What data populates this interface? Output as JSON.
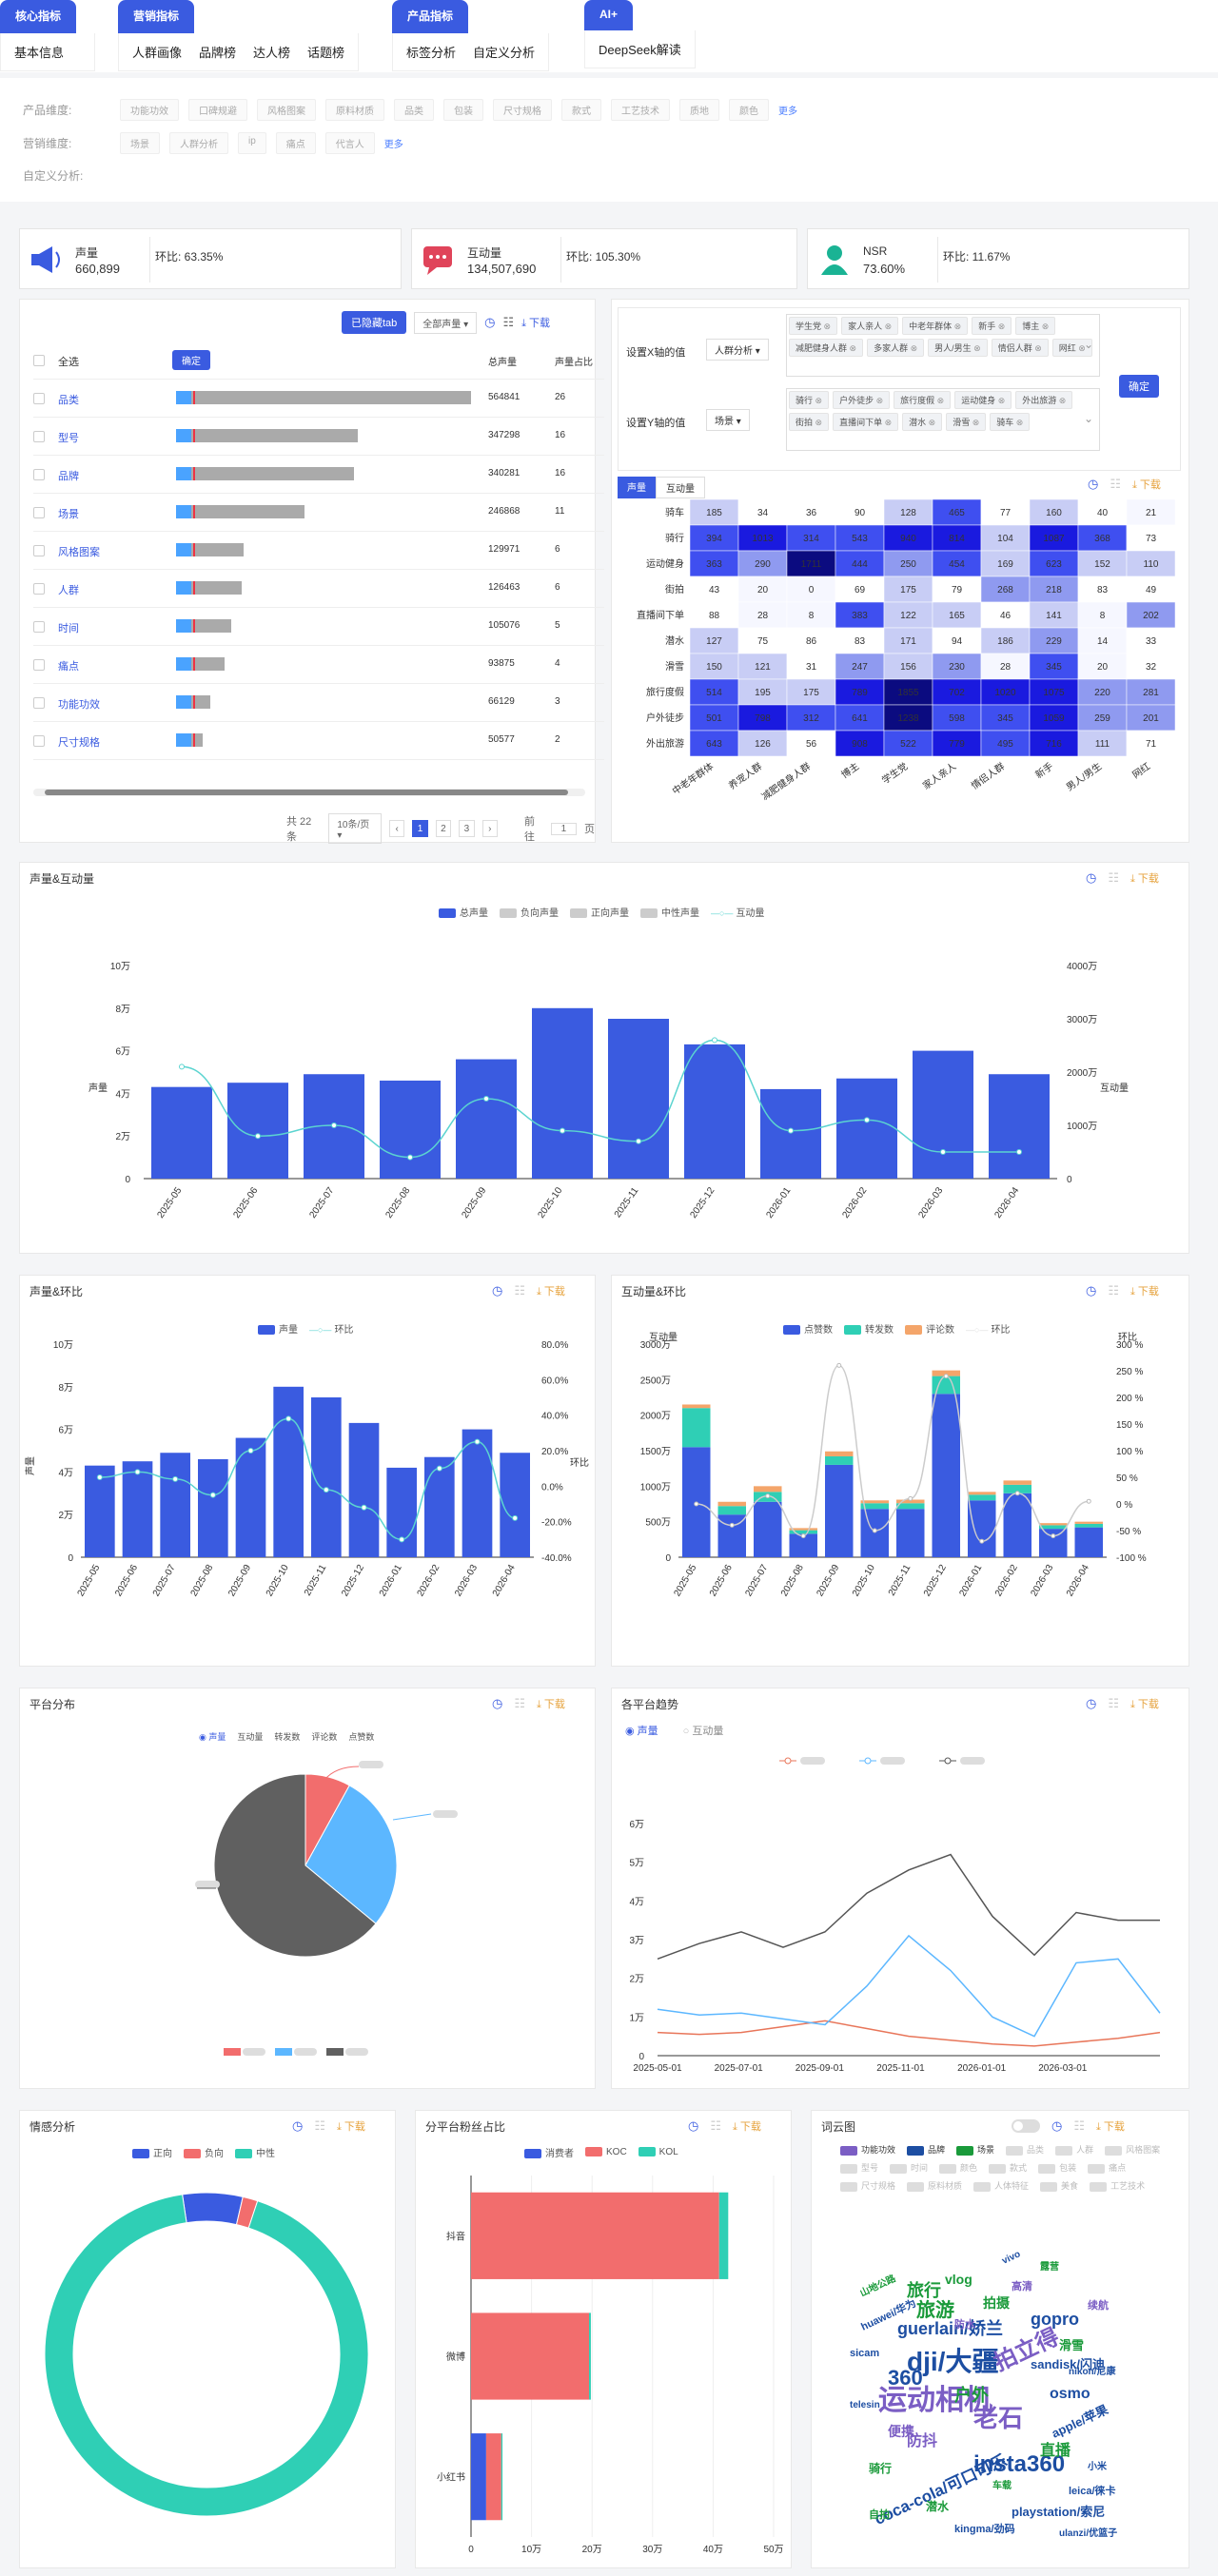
{
  "nav": {
    "groups": [
      {
        "header": "核心指标",
        "items": [
          "基本信息"
        ]
      },
      {
        "header": "营销指标",
        "items": [
          "人群画像",
          "品牌榜",
          "达人榜",
          "话题榜"
        ]
      },
      {
        "header": "产品指标",
        "items": [
          "标签分析",
          "自定义分析"
        ]
      },
      {
        "header": "AI+",
        "items": [
          "DeepSeek解读"
        ]
      }
    ]
  },
  "filters": {
    "product_label": "产品维度:",
    "product_chips": [
      "功能功效",
      "口碑规避",
      "风格图案",
      "原料材质",
      "品类",
      "包装",
      "尺寸规格",
      "款式",
      "工艺技术",
      "质地",
      "颜色"
    ],
    "marketing_label": "营销维度:",
    "marketing_chips": [
      "场景",
      "人群分析",
      "ip",
      "痛点",
      "代言人"
    ],
    "more": "更多",
    "custom_label": "自定义分析:"
  },
  "kpis": [
    {
      "name": "声量",
      "value": "660,899",
      "mom": "环比: 63.35%",
      "color": "#3a5be0"
    },
    {
      "name": "互动量",
      "value": "134,507,690",
      "mom": "环比: 105.30%",
      "color": "#e0445a"
    },
    {
      "name": "NSR",
      "value": "73.60%",
      "mom": "环比: 11.67%",
      "color": "#1ab394"
    }
  ],
  "tag_table": {
    "hidden_tab_btn": "已隐藏tab",
    "select_all_dropdown": "全部声量",
    "download": "下载",
    "col_select_all": "全选",
    "confirm": "确定",
    "col_total": "总声量",
    "col_share": "声量占比",
    "rows": [
      {
        "name": "品类",
        "value": "564841",
        "share": "26",
        "ratio": 1.0
      },
      {
        "name": "型号",
        "value": "347298",
        "share": "16",
        "ratio": 0.615
      },
      {
        "name": "品牌",
        "value": "340281",
        "share": "16",
        "ratio": 0.602
      },
      {
        "name": "场景",
        "value": "246868",
        "share": "11",
        "ratio": 0.437
      },
      {
        "name": "风格图案",
        "value": "129971",
        "share": "6",
        "ratio": 0.23
      },
      {
        "name": "人群",
        "value": "126463",
        "share": "6",
        "ratio": 0.224
      },
      {
        "name": "时间",
        "value": "105076",
        "share": "5",
        "ratio": 0.186
      },
      {
        "name": "痛点",
        "value": "93875",
        "share": "4",
        "ratio": 0.166
      },
      {
        "name": "功能功效",
        "value": "66129",
        "share": "3",
        "ratio": 0.117
      },
      {
        "name": "尺寸规格",
        "value": "50577",
        "share": "2",
        "ratio": 0.09
      }
    ],
    "total_text": "共 22 条",
    "per_page": "10条/页",
    "pages": [
      "1",
      "2",
      "3"
    ],
    "goto_label": "前往",
    "goto_value": "1",
    "page_suffix": "页"
  },
  "heatmap_panel": {
    "x_label": "设置X轴的值",
    "x_select": "人群分析",
    "x_tags": [
      "学生党",
      "家人亲人",
      "中老年群体",
      "新手",
      "博主",
      "减肥健身人群",
      "多家人群",
      "男人/男生",
      "情侣人群",
      "网红"
    ],
    "y_label": "设置Y轴的值",
    "y_select": "场景",
    "y_tags": [
      "骑行",
      "户外徒步",
      "旅行度假",
      "运动健身",
      "外出旅游",
      "街拍",
      "直播间下单",
      "潜水",
      "滑雪",
      "骑车"
    ],
    "confirm": "确定",
    "tab_volume": "声量",
    "tab_interact": "互动量",
    "download": "下载"
  },
  "chart_data": [
    {
      "id": "heatmap",
      "type": "heatmap",
      "x": [
        "中老年群体",
        "养宠人群",
        "减肥健身人群",
        "博主",
        "学生党",
        "家人亲人",
        "情侣人群",
        "新手",
        "男人/男生",
        "网红"
      ],
      "y": [
        "骑车",
        "骑行",
        "运动健身",
        "街拍",
        "直播间下单",
        "潜水",
        "滑雪",
        "旅行度假",
        "户外徒步",
        "外出旅游"
      ],
      "values": [
        [
          185,
          34,
          36,
          90,
          128,
          465,
          77,
          160,
          40,
          21
        ],
        [
          394,
          1013,
          314,
          543,
          940,
          814,
          104,
          1087,
          368,
          73
        ],
        [
          363,
          290,
          1711,
          444,
          250,
          454,
          169,
          623,
          152,
          110
        ],
        [
          43,
          20,
          0,
          69,
          175,
          79,
          268,
          218,
          83,
          49
        ],
        [
          88,
          28,
          8,
          383,
          122,
          165,
          46,
          141,
          8,
          202
        ],
        [
          127,
          75,
          86,
          83,
          171,
          94,
          186,
          229,
          14,
          33
        ],
        [
          150,
          121,
          31,
          247,
          156,
          230,
          28,
          345,
          20,
          32
        ],
        [
          514,
          195,
          175,
          789,
          1855,
          702,
          1020,
          1075,
          220,
          281
        ],
        [
          501,
          798,
          312,
          641,
          1238,
          598,
          345,
          1059,
          259,
          201
        ],
        [
          643,
          126,
          56,
          908,
          522,
          779,
          495,
          716,
          111,
          71
        ]
      ]
    },
    {
      "id": "vol_interact",
      "type": "bar",
      "title": "声量&互动量",
      "legend": [
        "总声量",
        "负向声量",
        "正向声量",
        "中性声量",
        "互动量"
      ],
      "categories": [
        "2025-05",
        "2025-06",
        "2025-07",
        "2025-08",
        "2025-09",
        "2025-10",
        "2025-11",
        "2025-12",
        "2026-01",
        "2026-02",
        "2026-03",
        "2026-04"
      ],
      "ylabel": "声量",
      "y2label": "互动量",
      "y_ticks": [
        "0",
        "2万",
        "4万",
        "6万",
        "8万",
        "10万"
      ],
      "y2_ticks": [
        "0",
        "1000万",
        "2000万",
        "3000万",
        "4000万"
      ],
      "ylim": [
        0,
        100000
      ],
      "y2lim": [
        0,
        40000000
      ],
      "series": [
        {
          "name": "总声量",
          "values": [
            43000,
            45000,
            49000,
            46000,
            56000,
            80000,
            75000,
            63000,
            42000,
            47000,
            60000,
            49000
          ]
        },
        {
          "name": "互动量",
          "values": [
            21000000,
            8000000,
            10000000,
            4000000,
            15000000,
            9000000,
            7000000,
            26000000,
            9000000,
            11000000,
            5000000,
            5000000
          ]
        }
      ]
    },
    {
      "id": "vol_mom",
      "type": "bar",
      "title": "声量&环比",
      "legend": [
        "声量",
        "环比"
      ],
      "categories": [
        "2025-05",
        "2025-06",
        "2025-07",
        "2025-08",
        "2025-09",
        "2025-10",
        "2025-11",
        "2025-12",
        "2026-01",
        "2026-02",
        "2026-03",
        "2026-04"
      ],
      "ylabel": "声量",
      "y2label": "环比",
      "y_ticks": [
        "0",
        "2万",
        "4万",
        "6万",
        "8万",
        "10万"
      ],
      "y2_ticks": [
        "-40.0%",
        "-20.0%",
        "0.0%",
        "20.0%",
        "40.0%",
        "60.0%",
        "80.0%"
      ],
      "ylim": [
        0,
        100000
      ],
      "y2lim": [
        -40,
        80
      ],
      "series": [
        {
          "name": "声量",
          "values": [
            43000,
            45000,
            49000,
            46000,
            56000,
            80000,
            75000,
            63000,
            42000,
            47000,
            60000,
            49000
          ]
        },
        {
          "name": "环比",
          "values": [
            5,
            8,
            4,
            -5,
            20,
            38,
            -2,
            -12,
            -30,
            10,
            25,
            -18
          ]
        }
      ]
    },
    {
      "id": "interact_mom",
      "type": "bar",
      "title": "互动量&环比",
      "legend": [
        "点赞数",
        "转发数",
        "评论数",
        "环比"
      ],
      "categories": [
        "2025-05",
        "2025-06",
        "2025-07",
        "2025-08",
        "2025-09",
        "2025-10",
        "2025-11",
        "2025-12",
        "2026-01",
        "2026-02",
        "2026-03",
        "2026-04"
      ],
      "ylabel": "互动量",
      "y2label": "环比",
      "y_ticks": [
        "0",
        "500万",
        "1000万",
        "1500万",
        "2000万",
        "2500万",
        "3000万"
      ],
      "y2_ticks": [
        "-100 %",
        "-50 %",
        "0 %",
        "50 %",
        "100 %",
        "150 %",
        "200 %",
        "250 %",
        "300 %"
      ],
      "ylim": [
        0,
        30000000
      ],
      "y2lim": [
        -100,
        300
      ],
      "series": [
        {
          "name": "点赞数",
          "values": [
            15500000,
            6000000,
            7800000,
            3300000,
            13000000,
            6800000,
            6800000,
            23000000,
            8000000,
            9000000,
            4000000,
            4200000
          ]
        },
        {
          "name": "转发数",
          "values": [
            5500000,
            1200000,
            1400000,
            500000,
            1200000,
            800000,
            800000,
            2500000,
            800000,
            1200000,
            500000,
            500000
          ]
        },
        {
          "name": "评论数",
          "values": [
            500000,
            600000,
            800000,
            300000,
            700000,
            400000,
            500000,
            800000,
            400000,
            600000,
            300000,
            300000
          ]
        },
        {
          "name": "环比",
          "values": [
            0,
            -40,
            15,
            -60,
            260,
            -50,
            10,
            240,
            -70,
            20,
            -60,
            5
          ]
        }
      ]
    },
    {
      "id": "platform_pie",
      "type": "pie",
      "title": "平台分布",
      "legend": [
        "声量",
        "互动量",
        "转发数",
        "评论数",
        "点赞数"
      ],
      "slices": [
        {
          "color": "#f26d6d",
          "value": 8
        },
        {
          "color": "#5cb7ff",
          "value": 28
        },
        {
          "color": "#606060",
          "value": 64
        }
      ]
    },
    {
      "id": "platform_trend",
      "type": "line",
      "title": "各平台趋势",
      "radio": [
        "声量",
        "互动量"
      ],
      "x_ticks": [
        "2025-05-01",
        "2025-07-01",
        "2025-09-01",
        "2025-11-01",
        "2026-01-01",
        "2026-03-01"
      ],
      "y_ticks": [
        "0",
        "1万",
        "2万",
        "3万",
        "4万",
        "5万",
        "6万"
      ],
      "ylim": [
        0,
        60000
      ],
      "series": [
        {
          "color": "#e8765a",
          "values": [
            6000,
            5500,
            6000,
            7500,
            9000,
            7000,
            5000,
            4000,
            3000,
            2500,
            3500,
            4500,
            6000
          ]
        },
        {
          "color": "#5cb7ff",
          "values": [
            12000,
            10500,
            11000,
            9500,
            8000,
            18000,
            31000,
            22000,
            10000,
            5000,
            24000,
            25000,
            11000
          ]
        },
        {
          "color": "#555555",
          "values": [
            25000,
            29000,
            32000,
            28000,
            32000,
            42000,
            48000,
            52000,
            36000,
            26000,
            37000,
            35000,
            35000
          ]
        }
      ]
    },
    {
      "id": "sentiment",
      "type": "pie",
      "title": "情感分析",
      "legend": [
        "正向",
        "负向",
        "中性"
      ],
      "slices": [
        {
          "name": "正向",
          "color": "#3a5be0",
          "value": 6
        },
        {
          "name": "负向",
          "color": "#f26d6d",
          "value": 1.5
        },
        {
          "name": "中性",
          "color": "#2fcfb5",
          "value": 92.5
        }
      ]
    },
    {
      "id": "fans",
      "type": "bar",
      "title": "分平台粉丝占比",
      "legend": [
        "消费者",
        "KOC",
        "KOL"
      ],
      "categories": [
        "抖音",
        "微博",
        "小红书"
      ],
      "x_ticks": [
        "0",
        "10万",
        "20万",
        "30万",
        "40万",
        "50万"
      ],
      "xlim": [
        0,
        500000
      ],
      "series": [
        {
          "name": "消费者",
          "values": [
            0,
            0,
            25000
          ]
        },
        {
          "name": "KOC",
          "values": [
            410000,
            195000,
            25000
          ]
        },
        {
          "name": "KOL",
          "values": [
            15000,
            3000,
            2000
          ]
        }
      ]
    }
  ],
  "wordcloud": {
    "title": "词云图",
    "download": "下载",
    "legend_on": [
      "功能功效",
      "品牌",
      "场景"
    ],
    "legend_on_colors": [
      "#7b5ec4",
      "#1d4ea2",
      "#1a9a3a"
    ],
    "legend_off": [
      "品类",
      "人群",
      "风格图案",
      "型号",
      "时间",
      "颜色",
      "款式",
      "包装",
      "痛点",
      "尺寸规格",
      "原料材质",
      "人体特征",
      "美食",
      "工艺技术"
    ],
    "words": [
      {
        "t": "dji/大疆",
        "c": "#1d4ea2",
        "s": 28
      },
      {
        "t": "运动相机",
        "c": "#7b5ec4",
        "s": 30
      },
      {
        "t": "insta360",
        "c": "#1d4ea2",
        "s": 24
      },
      {
        "t": "拍立得",
        "c": "#7b5ec4",
        "s": 24
      },
      {
        "t": "老石",
        "c": "#7b5ec4",
        "s": 26
      },
      {
        "t": "guerlain/娇兰",
        "c": "#1d4ea2",
        "s": 18
      },
      {
        "t": "旅游",
        "c": "#1a9a3a",
        "s": 20
      },
      {
        "t": "360",
        "c": "#1d4ea2",
        "s": 22
      },
      {
        "t": "gopro",
        "c": "#1d4ea2",
        "s": 18
      },
      {
        "t": "osmo",
        "c": "#1d4ea2",
        "s": 16
      },
      {
        "t": "coca-cola/可口可乐",
        "c": "#1d4ea2",
        "s": 17
      },
      {
        "t": "户外",
        "c": "#1a9a3a",
        "s": 18
      },
      {
        "t": "旅行",
        "c": "#1a9a3a",
        "s": 18
      },
      {
        "t": "防抖",
        "c": "#7b5ec4",
        "s": 16
      },
      {
        "t": "直播",
        "c": "#1a9a3a",
        "s": 16
      },
      {
        "t": "playstation/索尼",
        "c": "#1d4ea2",
        "s": 13
      },
      {
        "t": "sandisk/闪迪",
        "c": "#1d4ea2",
        "s": 13
      },
      {
        "t": "apple/苹果",
        "c": "#1d4ea2",
        "s": 13
      },
      {
        "t": "便携",
        "c": "#7b5ec4",
        "s": 14
      },
      {
        "t": "拍摄",
        "c": "#1a9a3a",
        "s": 14
      },
      {
        "t": "vlog",
        "c": "#1a9a3a",
        "s": 14
      },
      {
        "t": "滑雪",
        "c": "#1a9a3a",
        "s": 13
      },
      {
        "t": "kingma/劲码",
        "c": "#1d4ea2",
        "s": 11
      },
      {
        "t": "leica/徕卡",
        "c": "#1d4ea2",
        "s": 11
      },
      {
        "t": "huawei/华为",
        "c": "#1d4ea2",
        "s": 11
      },
      {
        "t": "sicam",
        "c": "#1d4ea2",
        "s": 11
      },
      {
        "t": "骑行",
        "c": "#1a9a3a",
        "s": 12
      },
      {
        "t": "潜水",
        "c": "#1a9a3a",
        "s": 12
      },
      {
        "t": "自拍",
        "c": "#1a9a3a",
        "s": 11
      },
      {
        "t": "高清",
        "c": "#7b5ec4",
        "s": 11
      },
      {
        "t": "telesin",
        "c": "#1d4ea2",
        "s": 10
      },
      {
        "t": "山地公路",
        "c": "#1a9a3a",
        "s": 10
      },
      {
        "t": "续航",
        "c": "#7b5ec4",
        "s": 11
      },
      {
        "t": "防水",
        "c": "#7b5ec4",
        "s": 11
      },
      {
        "t": "小米",
        "c": "#1d4ea2",
        "s": 10
      },
      {
        "t": "车载",
        "c": "#1a9a3a",
        "s": 10
      },
      {
        "t": "露营",
        "c": "#1a9a3a",
        "s": 10
      },
      {
        "t": "ulanzi/优篮子",
        "c": "#1d4ea2",
        "s": 10
      },
      {
        "t": "vivo",
        "c": "#1d4ea2",
        "s": 10
      },
      {
        "t": "nikon/尼康",
        "c": "#1d4ea2",
        "s": 10
      }
    ]
  }
}
